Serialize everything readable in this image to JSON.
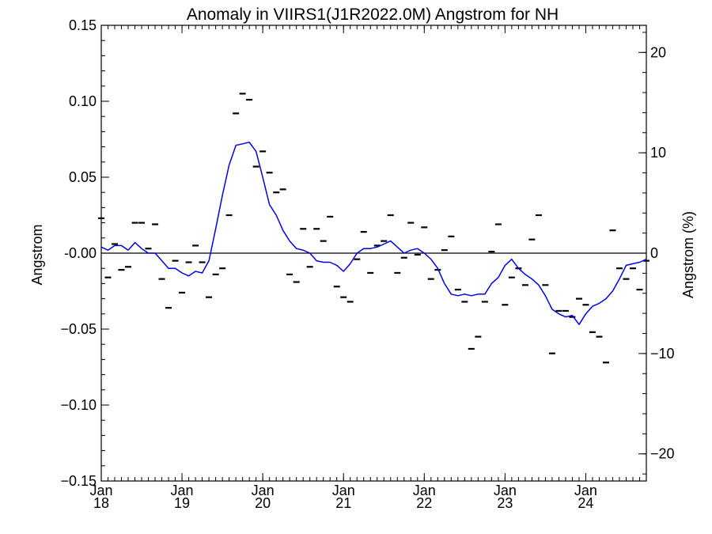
{
  "chart_data": {
    "type": "line",
    "title": "Anomaly in VIIRS1(J1R2022.0M) Angstrom for NH",
    "ylabel": "Angstrom",
    "y2label": "Angstrom (%)",
    "xlabel": "",
    "xlim": [
      2018.0,
      2024.75
    ],
    "ylim": [
      -0.15,
      0.15
    ],
    "y2lim": [
      -22.7,
      22.7
    ],
    "grid": false,
    "zero_line": true,
    "x_ticks": [
      {
        "value": 2018,
        "line1": "Jan",
        "line2": "18"
      },
      {
        "value": 2019,
        "line1": "Jan",
        "line2": "19"
      },
      {
        "value": 2020,
        "line1": "Jan",
        "line2": "20"
      },
      {
        "value": 2021,
        "line1": "Jan",
        "line2": "21"
      },
      {
        "value": 2022,
        "line1": "Jan",
        "line2": "22"
      },
      {
        "value": 2023,
        "line1": "Jan",
        "line2": "23"
      },
      {
        "value": 2024,
        "line1": "Jan",
        "line2": "24"
      }
    ],
    "y_ticks": [
      {
        "value": 0.15,
        "label": "0.15"
      },
      {
        "value": 0.1,
        "label": "0.10"
      },
      {
        "value": 0.05,
        "label": "0.05"
      },
      {
        "value": 0.0,
        "label": "-0.00"
      },
      {
        "value": -0.05,
        "label": "−0.05"
      },
      {
        "value": -0.1,
        "label": "−0.10"
      },
      {
        "value": -0.15,
        "label": "−0.15"
      }
    ],
    "y2_ticks": [
      {
        "value": 20,
        "label": "20"
      },
      {
        "value": 10,
        "label": "10"
      },
      {
        "value": 0,
        "label": "0"
      },
      {
        "value": -10,
        "label": "−10"
      },
      {
        "value": -20,
        "label": "−20"
      }
    ],
    "colors": {
      "smoothed": "#0000ee",
      "monthly": "#000000",
      "axes": "#000000"
    },
    "series": [
      {
        "key": "monthly",
        "style": "dash-markers",
        "x": [
          2018.0,
          2018.083,
          2018.167,
          2018.25,
          2018.333,
          2018.417,
          2018.5,
          2018.583,
          2018.667,
          2018.75,
          2018.833,
          2018.917,
          2019.0,
          2019.083,
          2019.167,
          2019.25,
          2019.333,
          2019.417,
          2019.5,
          2019.583,
          2019.667,
          2019.75,
          2019.833,
          2019.917,
          2020.0,
          2020.083,
          2020.167,
          2020.25,
          2020.333,
          2020.417,
          2020.5,
          2020.583,
          2020.667,
          2020.75,
          2020.833,
          2020.917,
          2021.0,
          2021.083,
          2021.167,
          2021.25,
          2021.333,
          2021.417,
          2021.5,
          2021.583,
          2021.667,
          2021.75,
          2021.833,
          2021.917,
          2022.0,
          2022.083,
          2022.167,
          2022.25,
          2022.333,
          2022.417,
          2022.5,
          2022.583,
          2022.667,
          2022.75,
          2022.833,
          2022.917,
          2023.0,
          2023.083,
          2023.167,
          2023.25,
          2023.333,
          2023.417,
          2023.5,
          2023.583,
          2023.667,
          2023.75,
          2023.833,
          2023.917,
          2024.0,
          2024.083,
          2024.167,
          2024.25,
          2024.333,
          2024.417,
          2024.5,
          2024.583,
          2024.667,
          2024.75
        ],
        "y": [
          0.023,
          -0.016,
          0.006,
          -0.011,
          -0.009,
          0.02,
          0.02,
          0.003,
          0.019,
          -0.017,
          -0.036,
          -0.005,
          -0.026,
          -0.006,
          0.005,
          -0.006,
          -0.029,
          -0.014,
          -0.01,
          0.025,
          0.092,
          0.105,
          0.101,
          0.057,
          0.067,
          0.053,
          0.04,
          0.042,
          -0.014,
          -0.019,
          0.016,
          -0.009,
          0.016,
          0.008,
          0.024,
          -0.022,
          -0.029,
          -0.032,
          -0.004,
          0.014,
          -0.013,
          0.005,
          0.008,
          0.025,
          -0.013,
          -0.003,
          0.02,
          -0.001,
          0.017,
          -0.017,
          -0.011,
          0.002,
          0.011,
          -0.024,
          -0.032,
          -0.063,
          -0.055,
          -0.032,
          0.001,
          0.019,
          -0.034,
          -0.016,
          -0.01,
          -0.021,
          0.009,
          0.025,
          -0.021,
          -0.066,
          -0.038,
          -0.038,
          -0.042,
          -0.03,
          -0.034,
          -0.052,
          -0.055,
          -0.072,
          0.015,
          -0.01,
          -0.017,
          -0.01,
          -0.024,
          -0.005
        ]
      },
      {
        "key": "smoothed",
        "style": "line",
        "x": [
          2018.0,
          2018.083,
          2018.167,
          2018.25,
          2018.333,
          2018.417,
          2018.5,
          2018.583,
          2018.667,
          2018.75,
          2018.833,
          2018.917,
          2019.0,
          2019.083,
          2019.167,
          2019.25,
          2019.333,
          2019.417,
          2019.5,
          2019.583,
          2019.667,
          2019.75,
          2019.833,
          2019.917,
          2020.0,
          2020.083,
          2020.167,
          2020.25,
          2020.333,
          2020.417,
          2020.5,
          2020.583,
          2020.667,
          2020.75,
          2020.833,
          2020.917,
          2021.0,
          2021.083,
          2021.167,
          2021.25,
          2021.333,
          2021.417,
          2021.5,
          2021.583,
          2021.667,
          2021.75,
          2021.833,
          2021.917,
          2022.0,
          2022.083,
          2022.167,
          2022.25,
          2022.333,
          2022.417,
          2022.5,
          2022.583,
          2022.667,
          2022.75,
          2022.833,
          2022.917,
          2023.0,
          2023.083,
          2023.167,
          2023.25,
          2023.333,
          2023.417,
          2023.5,
          2023.583,
          2023.667,
          2023.75,
          2023.833,
          2023.917,
          2024.0,
          2024.083,
          2024.167,
          2024.25,
          2024.333,
          2024.417,
          2024.5,
          2024.583,
          2024.667,
          2024.75
        ],
        "y": [
          0.004,
          0.002,
          0.005,
          0.005,
          0.002,
          0.007,
          0.003,
          0.0,
          0.0,
          -0.005,
          -0.01,
          -0.01,
          -0.013,
          -0.015,
          -0.012,
          -0.013,
          -0.005,
          0.016,
          0.038,
          0.058,
          0.071,
          0.072,
          0.073,
          0.067,
          0.05,
          0.032,
          0.025,
          0.015,
          0.008,
          0.003,
          0.002,
          0.0,
          -0.005,
          -0.006,
          -0.006,
          -0.008,
          -0.012,
          -0.007,
          0.0,
          0.003,
          0.003,
          0.004,
          0.006,
          0.008,
          0.004,
          0.0,
          0.002,
          0.003,
          0.0,
          -0.004,
          -0.01,
          -0.02,
          -0.027,
          -0.028,
          -0.027,
          -0.028,
          -0.027,
          -0.027,
          -0.02,
          -0.016,
          -0.008,
          -0.004,
          -0.01,
          -0.014,
          -0.017,
          -0.021,
          -0.028,
          -0.037,
          -0.04,
          -0.042,
          -0.041,
          -0.047,
          -0.04,
          -0.035,
          -0.033,
          -0.03,
          -0.025,
          -0.017,
          -0.008,
          -0.007,
          -0.006,
          -0.004
        ]
      }
    ]
  }
}
